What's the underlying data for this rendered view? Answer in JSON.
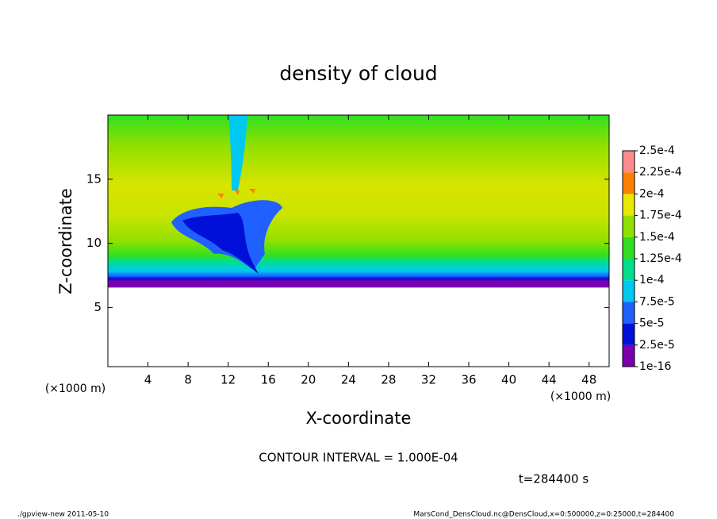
{
  "chart_data": {
    "type": "contour",
    "title": "density of cloud",
    "xlabel": "X-coordinate",
    "ylabel": "Z-coordinate",
    "x_unit": "(×1000 m)",
    "y_unit": "(×1000 m)",
    "xlim": [
      0,
      50
    ],
    "xticks": [
      4,
      8,
      12,
      16,
      20,
      24,
      28,
      32,
      36,
      40,
      44,
      48
    ],
    "ylim": [
      0.4,
      20
    ],
    "yticks": [
      5,
      10,
      15
    ],
    "levels": [
      1e-16,
      {
        "value": 2.5e-05,
        "label": "2.5e-5"
      },
      {
        "value": 5e-05,
        "label": "5e-5"
      },
      {
        "value": 7.5e-05,
        "label": "7.5e-5"
      },
      {
        "value": 0.0001,
        "label": "1e-4"
      },
      {
        "value": 0.000125,
        "label": "1.25e-4"
      },
      {
        "value": 0.00015,
        "label": "1.5e-4"
      },
      {
        "value": 0.000175,
        "label": "1.75e-4"
      },
      {
        "value": 0.0002,
        "label": "2e-4"
      },
      {
        "value": 0.000225,
        "label": "2.25e-4"
      },
      {
        "value": 0.00025,
        "label": "2.5e-4"
      }
    ],
    "colors": [
      "#7a00b0",
      "#0010d8",
      "#2060ff",
      "#00c8f0",
      "#00e08c",
      "#30e020",
      "#90e000",
      "#e8e800",
      "#ff8000",
      "#ff8c8c"
    ],
    "contour_interval": "CONTOUR INTERVAL = 1.000E-04",
    "time": "t=284400 s",
    "footer_left": "./gpview-new  2011-05-10",
    "footer_right": "MarsCond_DensCloud.nc@DensCloud,x=0:500000,z=0:25000,t=284400"
  }
}
